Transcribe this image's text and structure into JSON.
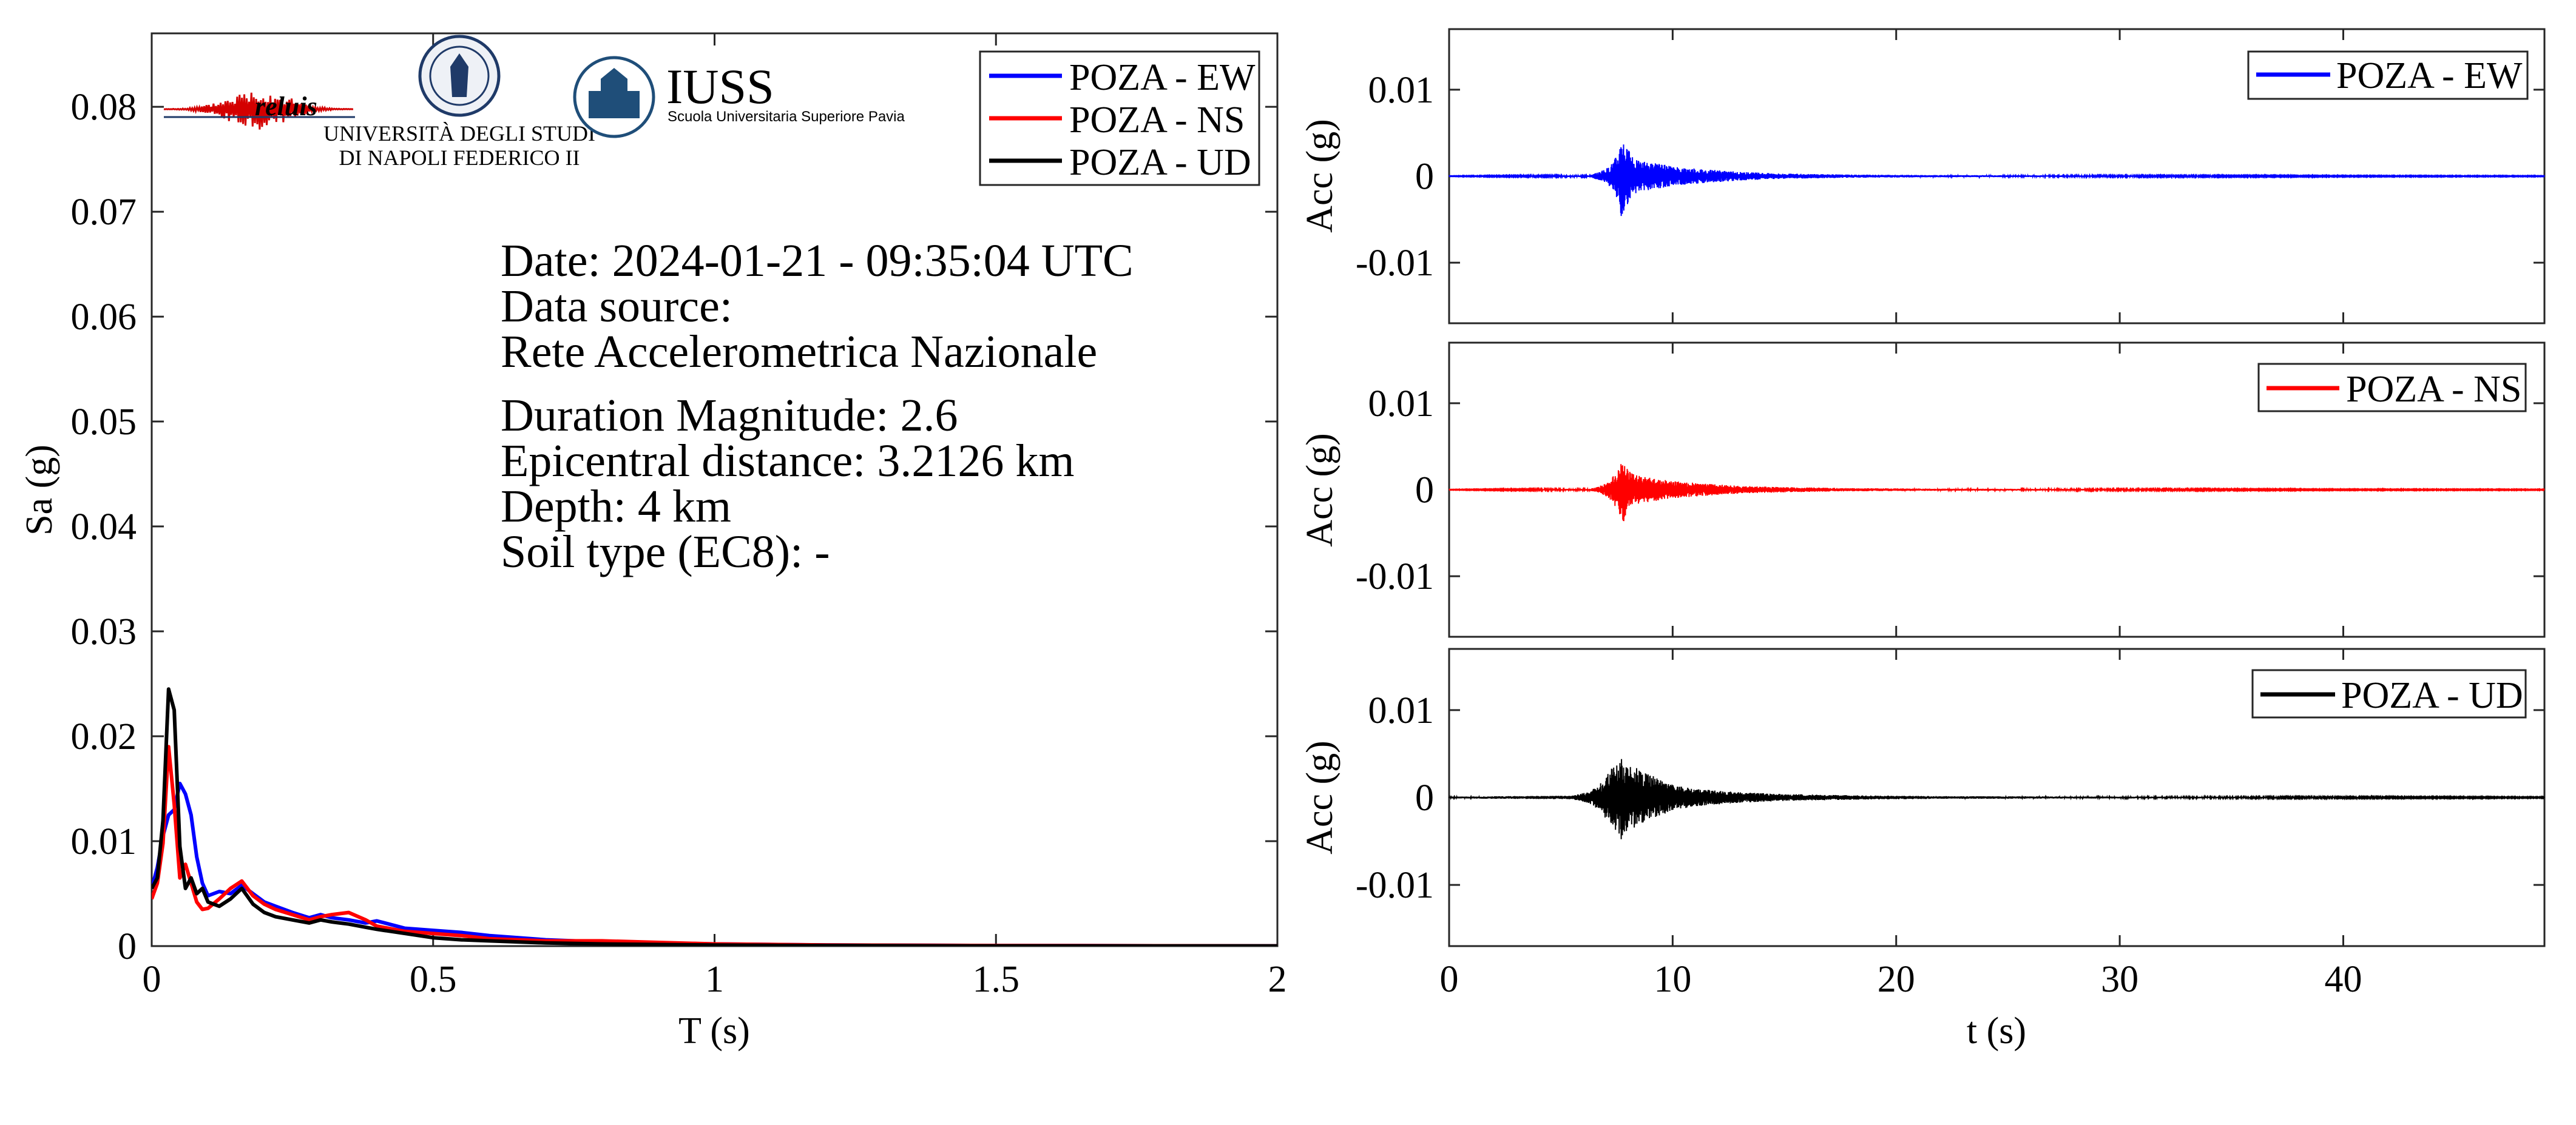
{
  "colors": {
    "EW": "#0000ff",
    "NS": "#ff0000",
    "UD": "#000000",
    "iuss": "#1f4e79",
    "unina": "#1f3a68"
  },
  "logos": {
    "reluis": "reluis",
    "unina_line1": "UNIVERSITÀ DEGLI STUDI",
    "unina_line2": "DI NAPOLI FEDERICO II",
    "iuss_title": "IUSS",
    "iuss_subtitle": "Scuola Universitaria Superiore Pavia"
  },
  "info": {
    "date": "Date: 2024-01-21 - 09:35:04 UTC",
    "source_label": "Data source:",
    "source_value": "Rete Accelerometrica Nazionale",
    "magnitude": "Duration Magnitude: 2.6",
    "distance": "Epicentral distance: 3.2126 km",
    "depth": "Depth: 4 km",
    "soil": "Soil type (EC8): -"
  },
  "chart_data": [
    {
      "type": "line",
      "xlabel": "T (s)",
      "ylabel": "Sa (g)",
      "xlim": [
        0,
        2
      ],
      "ylim": [
        0,
        0.087
      ],
      "xticks": [
        0,
        0.5,
        1,
        1.5,
        2
      ],
      "xtick_labels": [
        "0",
        "0.5",
        "1",
        "1.5",
        "2"
      ],
      "yticks": [
        0,
        0.01,
        0.02,
        0.03,
        0.04,
        0.05,
        0.06,
        0.07,
        0.08
      ],
      "ytick_labels": [
        "0",
        "0.01",
        "0.02",
        "0.03",
        "0.04",
        "0.05",
        "0.06",
        "0.07",
        "0.08"
      ],
      "legend_position": "top-right",
      "series": [
        {
          "name": "POZA - EW",
          "color_key": "EW",
          "x": [
            0,
            0.01,
            0.02,
            0.03,
            0.04,
            0.05,
            0.06,
            0.07,
            0.08,
            0.09,
            0.1,
            0.12,
            0.14,
            0.16,
            0.18,
            0.2,
            0.22,
            0.25,
            0.28,
            0.3,
            0.32,
            0.35,
            0.38,
            0.4,
            0.45,
            0.5,
            0.55,
            0.6,
            0.7,
            0.8,
            1,
            1.2,
            1.5,
            2
          ],
          "y": [
            0.0055,
            0.0075,
            0.0105,
            0.0125,
            0.013,
            0.0155,
            0.0145,
            0.0125,
            0.0085,
            0.006,
            0.0048,
            0.0052,
            0.005,
            0.0058,
            0.005,
            0.0042,
            0.0038,
            0.0032,
            0.0027,
            0.003,
            0.0027,
            0.0025,
            0.0022,
            0.0024,
            0.0017,
            0.0015,
            0.0013,
            0.001,
            0.0006,
            0.0004,
            0.0002,
            0.0001,
            5e-05,
            2e-05
          ]
        },
        {
          "name": "POZA - NS",
          "color_key": "NS",
          "x": [
            0,
            0.01,
            0.02,
            0.03,
            0.04,
            0.05,
            0.06,
            0.07,
            0.08,
            0.09,
            0.1,
            0.12,
            0.14,
            0.16,
            0.18,
            0.2,
            0.22,
            0.25,
            0.28,
            0.3,
            0.32,
            0.35,
            0.38,
            0.4,
            0.45,
            0.5,
            0.55,
            0.6,
            0.7,
            0.8,
            1,
            1.2,
            1.5,
            2
          ],
          "y": [
            0.0045,
            0.006,
            0.0098,
            0.019,
            0.0135,
            0.0065,
            0.0078,
            0.006,
            0.0042,
            0.0035,
            0.0036,
            0.0045,
            0.0055,
            0.0062,
            0.0048,
            0.004,
            0.0035,
            0.003,
            0.0025,
            0.0028,
            0.003,
            0.0032,
            0.0025,
            0.0019,
            0.0014,
            0.0012,
            0.001,
            0.0007,
            0.0005,
            0.0005,
            0.0002,
            0.0001,
            5e-05,
            2e-05
          ]
        },
        {
          "name": "POZA - UD",
          "color_key": "UD",
          "x": [
            0,
            0.01,
            0.02,
            0.03,
            0.04,
            0.05,
            0.06,
            0.07,
            0.08,
            0.09,
            0.1,
            0.12,
            0.14,
            0.16,
            0.18,
            0.2,
            0.22,
            0.25,
            0.28,
            0.3,
            0.32,
            0.35,
            0.38,
            0.4,
            0.45,
            0.5,
            0.55,
            0.6,
            0.7,
            0.8,
            1,
            1.2,
            1.5,
            2
          ],
          "y": [
            0.0055,
            0.0065,
            0.012,
            0.0245,
            0.0225,
            0.0095,
            0.0055,
            0.0065,
            0.005,
            0.0055,
            0.0042,
            0.0038,
            0.0045,
            0.0055,
            0.004,
            0.0032,
            0.0028,
            0.0025,
            0.0022,
            0.0025,
            0.0023,
            0.0021,
            0.0018,
            0.0016,
            0.0012,
            0.0008,
            0.0006,
            0.0005,
            0.0003,
            0.0002,
            0.0001,
            5e-05,
            2e-05,
            1e-05
          ]
        }
      ]
    },
    {
      "type": "line",
      "xlabel": "",
      "ylabel": "Acc (g)",
      "xlim": [
        0,
        49
      ],
      "ylim": [
        -0.017,
        0.017
      ],
      "yticks": [
        -0.01,
        0,
        0.01
      ],
      "ytick_labels": [
        "-0.01",
        "0",
        "0.01"
      ],
      "legend_position": "top-right",
      "series": [
        {
          "name": "POZA - EW",
          "color_key": "EW",
          "t": [
            0,
            6.3,
            6.8,
            7.1,
            7.3,
            7.5,
            7.6,
            7.7,
            7.8,
            7.9,
            8.0,
            8.2,
            8.5,
            9,
            9.5,
            10,
            11,
            12,
            13,
            15,
            18,
            22,
            30,
            40,
            49
          ],
          "amp": [
            3e-05,
            0.0001,
            0.0006,
            0.001,
            0.0016,
            0.0025,
            0.0028,
            0.0055,
            0.0045,
            0.0035,
            0.0032,
            0.0022,
            0.0018,
            0.0016,
            0.0014,
            0.0011,
            0.0009,
            0.0007,
            0.0005,
            0.0003,
            0.00018,
            0.00012,
            8e-05,
            5e-05,
            4e-05
          ]
        }
      ]
    },
    {
      "type": "line",
      "xlabel": "",
      "ylabel": "Acc (g)",
      "xlim": [
        0,
        49
      ],
      "ylim": [
        -0.017,
        0.017
      ],
      "yticks": [
        -0.01,
        0,
        0.01
      ],
      "ytick_labels": [
        "-0.01",
        "0",
        "0.01"
      ],
      "legend_position": "top-right",
      "series": [
        {
          "name": "POZA - NS",
          "color_key": "NS",
          "t": [
            0,
            6.3,
            6.8,
            7.1,
            7.3,
            7.5,
            7.6,
            7.7,
            7.8,
            7.9,
            8.0,
            8.2,
            8.5,
            9,
            9.5,
            10,
            11,
            12,
            13,
            15,
            18,
            22,
            30,
            40,
            49
          ],
          "amp": [
            3e-05,
            0.0001,
            0.0005,
            0.0009,
            0.0014,
            0.0022,
            0.0026,
            0.0036,
            0.0038,
            0.003,
            0.0026,
            0.0019,
            0.0016,
            0.0014,
            0.0012,
            0.001,
            0.0008,
            0.0006,
            0.00045,
            0.0003,
            0.00018,
            0.00012,
            8e-05,
            5e-05,
            4e-05
          ]
        }
      ]
    },
    {
      "type": "line",
      "xlabel": "t (s)",
      "ylabel": "Acc (g)",
      "xlim": [
        0,
        49
      ],
      "ylim": [
        -0.017,
        0.017
      ],
      "xticks": [
        0,
        10,
        20,
        30,
        40
      ],
      "xtick_labels": [
        "0",
        "10",
        "20",
        "30",
        "40"
      ],
      "yticks": [
        -0.01,
        0,
        0.01
      ],
      "ytick_labels": [
        "-0.01",
        "0",
        "0.01"
      ],
      "legend_position": "top-right",
      "series": [
        {
          "name": "POZA - UD",
          "color_key": "UD",
          "t": [
            0,
            5.5,
            6.3,
            6.8,
            7.1,
            7.3,
            7.5,
            7.7,
            7.8,
            8.0,
            8.3,
            8.7,
            9,
            9.5,
            10,
            11,
            12,
            13,
            15,
            18,
            22,
            30,
            40,
            49
          ],
          "amp": [
            0.0001,
            0.0002,
            0.0007,
            0.0018,
            0.0028,
            0.0035,
            0.0038,
            0.0048,
            0.0042,
            0.004,
            0.0035,
            0.003,
            0.0026,
            0.002,
            0.0015,
            0.001,
            0.0008,
            0.0006,
            0.0004,
            0.00025,
            0.00015,
            0.0001,
            7e-05,
            5e-05
          ]
        }
      ]
    }
  ]
}
